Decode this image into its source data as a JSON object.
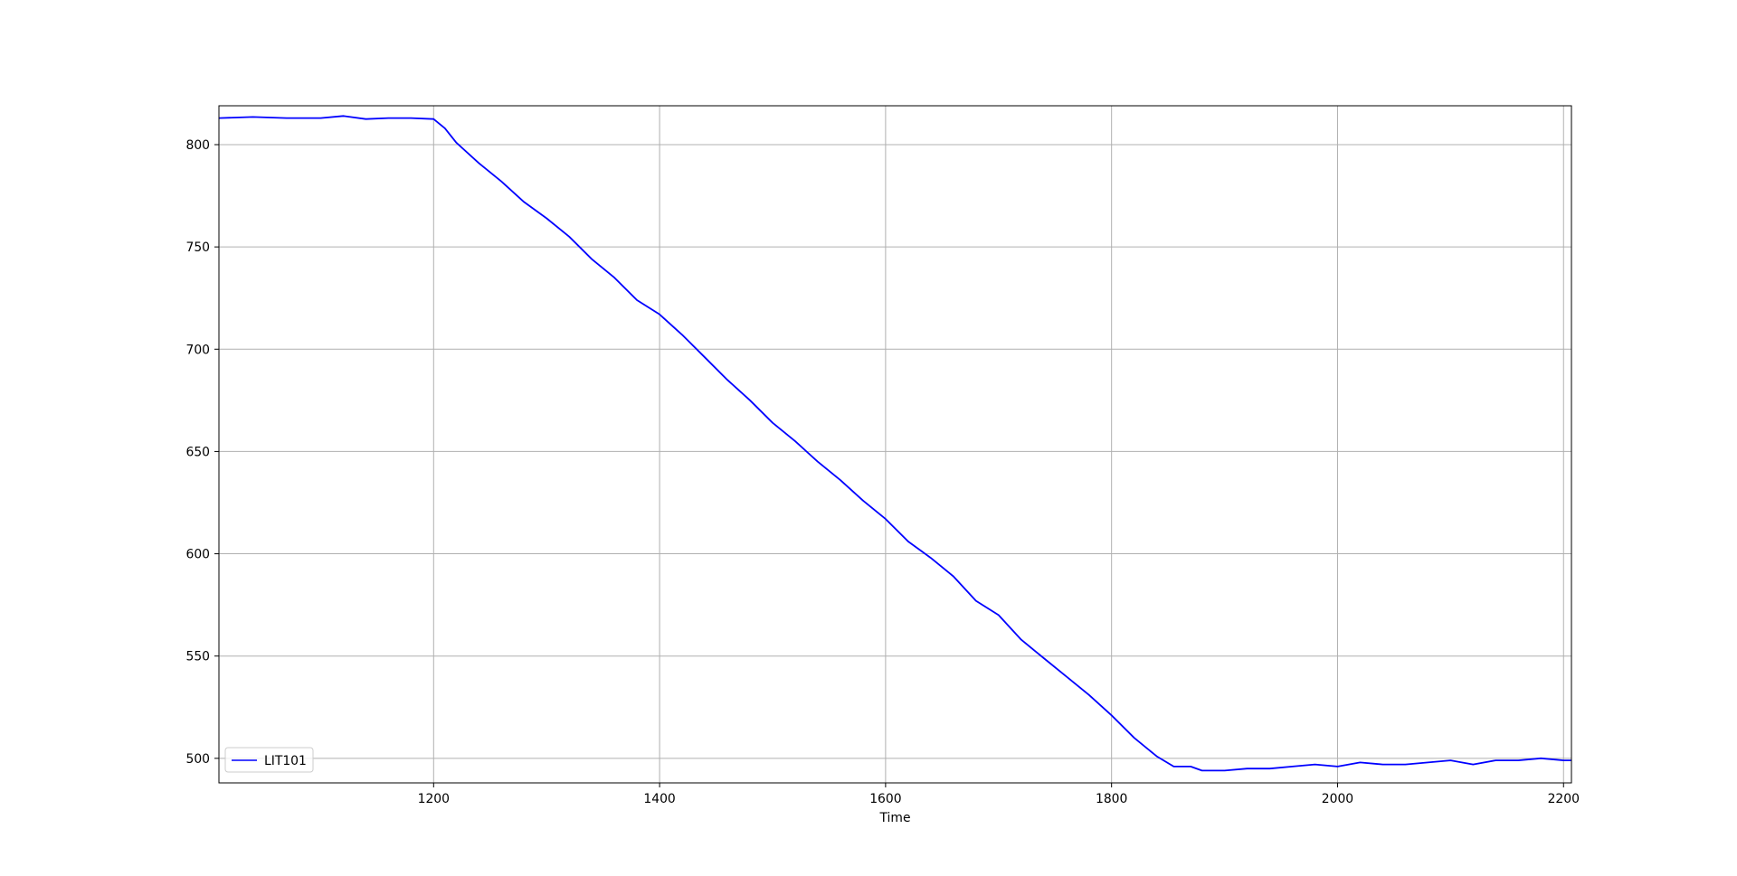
{
  "chart_data": {
    "type": "line",
    "title": "",
    "xlabel": "Time",
    "ylabel": "",
    "xlim": [
      1010,
      2207
    ],
    "ylim": [
      488,
      819
    ],
    "xticks": [
      1200,
      1400,
      1600,
      1800,
      2000,
      2200
    ],
    "yticks": [
      500,
      550,
      600,
      650,
      700,
      750,
      800
    ],
    "grid": true,
    "legend_position": "lower-left",
    "series": [
      {
        "name": "LIT101",
        "color": "#0000ff",
        "x": [
          1010,
          1040,
          1070,
          1100,
          1120,
          1140,
          1160,
          1180,
          1200,
          1210,
          1220,
          1240,
          1260,
          1280,
          1300,
          1320,
          1340,
          1360,
          1380,
          1400,
          1420,
          1440,
          1460,
          1480,
          1500,
          1520,
          1540,
          1560,
          1580,
          1600,
          1620,
          1640,
          1660,
          1680,
          1700,
          1720,
          1740,
          1760,
          1780,
          1800,
          1820,
          1840,
          1855,
          1870,
          1880,
          1900,
          1920,
          1940,
          1960,
          1980,
          2000,
          2020,
          2040,
          2060,
          2080,
          2100,
          2120,
          2140,
          2160,
          2180,
          2200,
          2207
        ],
        "values": [
          813,
          813.5,
          813,
          813,
          814,
          812.5,
          813,
          813,
          812.5,
          808,
          801,
          791,
          782,
          772,
          764,
          755,
          744,
          735,
          724,
          717,
          707,
          696,
          685,
          675,
          664,
          655,
          645,
          636,
          626,
          617,
          606,
          598,
          589,
          577,
          570,
          558,
          549,
          540,
          531,
          521,
          510,
          501,
          496,
          496,
          494,
          494,
          495,
          495,
          496,
          497,
          496,
          498,
          497,
          497,
          498,
          499,
          497,
          499,
          499,
          500,
          499,
          499
        ]
      }
    ]
  }
}
